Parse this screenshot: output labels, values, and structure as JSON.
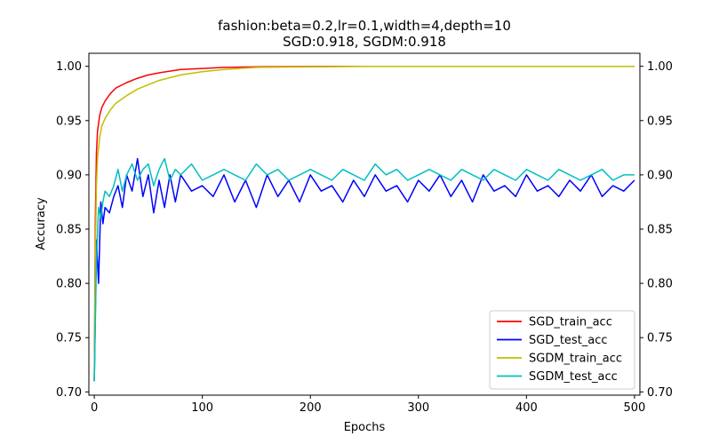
{
  "chart_data": {
    "type": "line",
    "title": "fashion:beta=0.2,lr=0.1,width=4,depth=10",
    "subtitle": "SGD:0.918, SGDM:0.918",
    "xlabel": "Epochs",
    "ylabel": "Accuracy",
    "xlim": [
      -5,
      505
    ],
    "ylim": [
      0.697,
      1.012
    ],
    "x_ticks": [
      0,
      100,
      200,
      300,
      400,
      500
    ],
    "y_ticks": [
      0.7,
      0.75,
      0.8,
      0.85,
      0.9,
      0.95,
      1.0
    ],
    "y_tick_labels": [
      "0.70",
      "0.75",
      "0.80",
      "0.85",
      "0.90",
      "0.95",
      "1.00"
    ],
    "right_axis_ticks": true,
    "grid": false,
    "legend_position": "bottom-right",
    "series": [
      {
        "name": "SGD_train_acc",
        "color": "#ff0000",
        "x": [
          0,
          1,
          2,
          3,
          5,
          7,
          10,
          15,
          20,
          30,
          40,
          50,
          60,
          80,
          100,
          120,
          150,
          200,
          250,
          300,
          400,
          500
        ],
        "values": [
          0.71,
          0.86,
          0.92,
          0.94,
          0.955,
          0.962,
          0.968,
          0.975,
          0.98,
          0.985,
          0.989,
          0.992,
          0.994,
          0.997,
          0.998,
          0.999,
          0.9995,
          0.9998,
          1.0,
          1.0,
          1.0,
          1.0
        ]
      },
      {
        "name": "SGD_test_acc",
        "color": "#0000ff",
        "x": [
          0,
          2,
          4,
          6,
          8,
          10,
          14,
          18,
          22,
          26,
          30,
          35,
          40,
          45,
          50,
          55,
          60,
          65,
          70,
          75,
          80,
          90,
          100,
          110,
          120,
          130,
          140,
          150,
          160,
          170,
          180,
          190,
          200,
          210,
          220,
          230,
          240,
          250,
          260,
          270,
          280,
          290,
          300,
          310,
          320,
          330,
          340,
          350,
          360,
          370,
          380,
          390,
          400,
          410,
          420,
          430,
          440,
          450,
          460,
          470,
          480,
          490,
          500
        ],
        "values": [
          0.71,
          0.84,
          0.8,
          0.875,
          0.855,
          0.87,
          0.865,
          0.88,
          0.89,
          0.87,
          0.9,
          0.885,
          0.915,
          0.88,
          0.9,
          0.865,
          0.895,
          0.87,
          0.9,
          0.875,
          0.9,
          0.885,
          0.89,
          0.88,
          0.9,
          0.875,
          0.895,
          0.87,
          0.9,
          0.88,
          0.895,
          0.875,
          0.9,
          0.885,
          0.89,
          0.875,
          0.895,
          0.88,
          0.9,
          0.885,
          0.89,
          0.875,
          0.895,
          0.885,
          0.9,
          0.88,
          0.895,
          0.875,
          0.9,
          0.885,
          0.89,
          0.88,
          0.9,
          0.885,
          0.89,
          0.88,
          0.895,
          0.885,
          0.9,
          0.88,
          0.89,
          0.885,
          0.895
        ]
      },
      {
        "name": "SGDM_train_acc",
        "color": "#bfbf00",
        "x": [
          0,
          1,
          2,
          3,
          5,
          7,
          10,
          15,
          20,
          30,
          40,
          50,
          60,
          80,
          100,
          120,
          150,
          200,
          250,
          300,
          400,
          500
        ],
        "values": [
          0.71,
          0.83,
          0.89,
          0.915,
          0.935,
          0.945,
          0.952,
          0.96,
          0.966,
          0.973,
          0.979,
          0.983,
          0.987,
          0.992,
          0.995,
          0.997,
          0.999,
          0.9995,
          1.0,
          1.0,
          1.0,
          1.0
        ]
      },
      {
        "name": "SGDM_test_acc",
        "color": "#00bfbf",
        "x": [
          0,
          2,
          4,
          6,
          8,
          10,
          14,
          18,
          22,
          26,
          30,
          35,
          40,
          45,
          50,
          55,
          60,
          65,
          70,
          75,
          80,
          90,
          100,
          110,
          120,
          130,
          140,
          150,
          160,
          170,
          180,
          190,
          200,
          210,
          220,
          230,
          240,
          250,
          260,
          270,
          280,
          290,
          300,
          310,
          320,
          330,
          340,
          350,
          360,
          370,
          380,
          390,
          400,
          410,
          420,
          430,
          440,
          450,
          460,
          470,
          480,
          490,
          500
        ],
        "values": [
          0.71,
          0.82,
          0.87,
          0.86,
          0.875,
          0.885,
          0.88,
          0.89,
          0.905,
          0.885,
          0.9,
          0.91,
          0.895,
          0.905,
          0.91,
          0.89,
          0.905,
          0.915,
          0.895,
          0.905,
          0.9,
          0.91,
          0.895,
          0.9,
          0.905,
          0.9,
          0.895,
          0.91,
          0.9,
          0.905,
          0.895,
          0.9,
          0.905,
          0.9,
          0.895,
          0.905,
          0.9,
          0.895,
          0.91,
          0.9,
          0.905,
          0.895,
          0.9,
          0.905,
          0.9,
          0.895,
          0.905,
          0.9,
          0.895,
          0.905,
          0.9,
          0.895,
          0.905,
          0.9,
          0.895,
          0.905,
          0.9,
          0.895,
          0.9,
          0.905,
          0.895,
          0.9,
          0.9
        ]
      }
    ]
  }
}
